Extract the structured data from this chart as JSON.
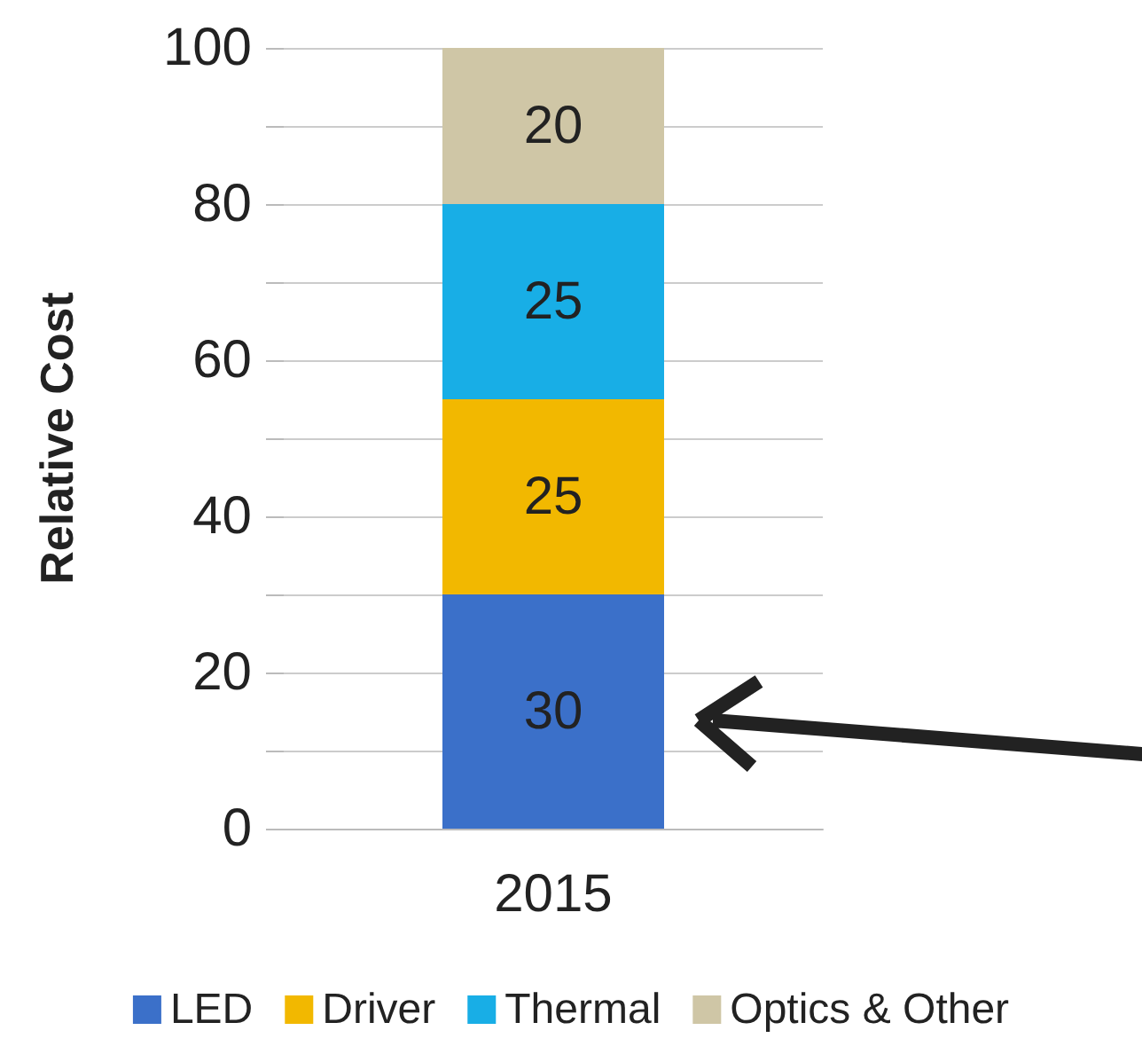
{
  "chart_data": {
    "type": "bar",
    "ylabel": "Relative Cost",
    "categories": [
      "2015"
    ],
    "stacked": true,
    "series": [
      {
        "name": "LED",
        "color": "#3b70c9",
        "values": [
          30
        ]
      },
      {
        "name": "Driver",
        "color": "#f2b800",
        "values": [
          25
        ]
      },
      {
        "name": "Thermal",
        "color": "#18aee6",
        "values": [
          25
        ]
      },
      {
        "name": "Optics & Other",
        "color": "#cfc6a6",
        "values": [
          20
        ]
      }
    ],
    "ylim": [
      0,
      100
    ],
    "yticks": [
      0,
      {
        "value": 10,
        "label": null
      },
      20,
      {
        "value": 30,
        "label": null
      },
      40,
      {
        "value": 50,
        "label": null
      },
      60,
      {
        "value": 70,
        "label": null
      },
      80,
      {
        "value": 90,
        "label": null
      },
      100
    ],
    "grid": "y",
    "legend": "bottom",
    "data_labels": true
  }
}
